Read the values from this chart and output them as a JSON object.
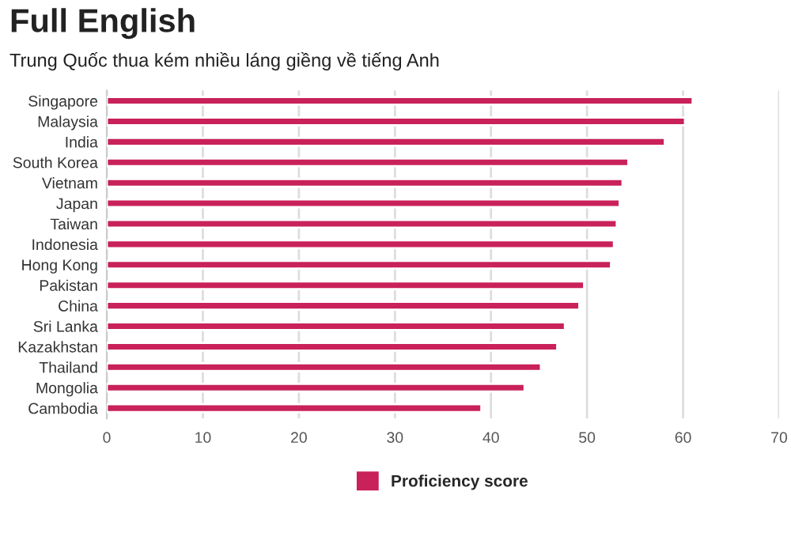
{
  "chart_data": {
    "type": "bar",
    "orientation": "horizontal",
    "title": "Full English",
    "subtitle": "Trung Quốc thua kém nhiều láng giềng về tiếng Anh",
    "categories": [
      "Singapore",
      "Malaysia",
      "India",
      "South Korea",
      "Vietnam",
      "Japan",
      "Taiwan",
      "Indonesia",
      "Hong Kong",
      "Pakistan",
      "China",
      "Sri Lanka",
      "Kazakhstan",
      "Thailand",
      "Mongolia",
      "Cambodia"
    ],
    "series": [
      {
        "name": "Proficiency score",
        "color": "#c9215a",
        "values": [
          61.0,
          60.2,
          58.1,
          54.3,
          53.7,
          53.4,
          53.1,
          52.8,
          52.5,
          49.7,
          49.2,
          47.7,
          46.9,
          45.2,
          43.5,
          39.0
        ]
      }
    ],
    "xlim": [
      0,
      70
    ],
    "xticks": [
      0,
      10,
      20,
      30,
      40,
      50,
      60,
      70
    ],
    "grid": "x",
    "legend": "bottom"
  }
}
